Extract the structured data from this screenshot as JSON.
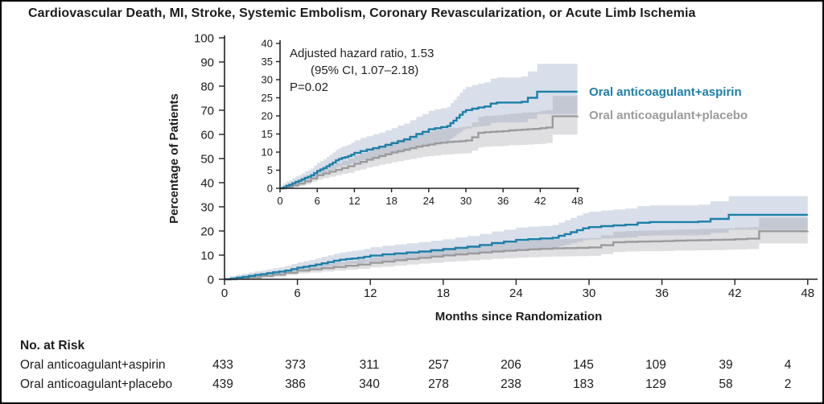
{
  "title": "Cardiovascular Death, MI, Stroke, Systemic Embolism, Coronary Revascularization, or Acute Limb Ischemia",
  "annotation": {
    "line1": "Adjusted hazard ratio, 1.53",
    "line2": "(95% CI, 1.07–2.18)",
    "line3": "P=0.02"
  },
  "legend": [
    {
      "label": "Oral anticoagulant+aspirin",
      "color": "#1d7fa7"
    },
    {
      "label": "Oral anticoagulant+placebo",
      "color": "#9b9b9d"
    }
  ],
  "axes": {
    "x_label": "Months since Randomization",
    "y_label": "Percentage of Patients"
  },
  "risk_table": {
    "heading": "No. at Risk",
    "rows": [
      {
        "label": "Oral anticoagulant+aspirin",
        "values": [
          "433",
          "373",
          "311",
          "257",
          "206",
          "145",
          "109",
          "39",
          "4"
        ]
      },
      {
        "label": "Oral anticoagulant+placebo",
        "values": [
          "439",
          "386",
          "340",
          "278",
          "238",
          "183",
          "129",
          "58",
          "2"
        ]
      }
    ]
  },
  "chart_data": {
    "type": "step",
    "title": "Cardiovascular Death, MI, Stroke, Systemic Embolism, Coronary Revascularization, or Acute Limb Ischemia",
    "xlabel": "Months since Randomization",
    "ylabel": "Percentage of Patients",
    "main_axes": {
      "xlim": [
        0,
        48
      ],
      "ylim": [
        0,
        100
      ],
      "xticks": [
        0,
        6,
        12,
        18,
        24,
        30,
        36,
        42,
        48
      ],
      "yticks": [
        0,
        10,
        20,
        30,
        40,
        50,
        60,
        70,
        80,
        90,
        100
      ]
    },
    "inset_axes": {
      "xlim": [
        0,
        48
      ],
      "ylim": [
        0,
        40
      ],
      "xticks": [
        0,
        6,
        12,
        18,
        24,
        30,
        36,
        42,
        48
      ],
      "yticks": [
        0,
        5,
        10,
        15,
        20,
        25,
        30,
        35,
        40
      ]
    },
    "series": [
      {
        "name": "Oral anticoagulant+aspirin",
        "color": "#1d7fa7",
        "band_color": "rgba(125,150,185,0.30)",
        "x": [
          0,
          0.5,
          1,
          1.5,
          2,
          2.5,
          3,
          3.5,
          4,
          4.5,
          5,
          5.5,
          6,
          6.5,
          7,
          7.5,
          8,
          8.5,
          9,
          9.5,
          10,
          10.5,
          11,
          11.5,
          12,
          13,
          14,
          15,
          16,
          17,
          18,
          19,
          20,
          21,
          22,
          23,
          24,
          25,
          26,
          27,
          27.5,
          28,
          28.5,
          29,
          29.5,
          30,
          31,
          32,
          33,
          34,
          35,
          39,
          40,
          41.5,
          48
        ],
        "y": [
          0,
          0.3,
          0.7,
          1,
          1.4,
          1.8,
          2.1,
          2.5,
          2.9,
          3.2,
          3.6,
          4.2,
          4.8,
          5.2,
          5.6,
          6.1,
          6.6,
          7.1,
          7.7,
          8.1,
          8.4,
          8.6,
          8.9,
          9.3,
          9.8,
          10.3,
          10.7,
          11.1,
          11.5,
          12,
          12.5,
          13,
          13.5,
          14.2,
          15,
          15.6,
          16.3,
          16.6,
          16.9,
          17.2,
          18,
          18.7,
          19.5,
          20.3,
          21.1,
          21.6,
          22,
          22.3,
          22.6,
          23.4,
          23.7,
          23.9,
          25,
          26.7,
          26.7
        ],
        "ci_upper": [
          0,
          1.4,
          1.9,
          2.3,
          2.8,
          3.3,
          3.6,
          4.1,
          4.6,
          5,
          5.5,
          6.3,
          7,
          7.5,
          8,
          8.6,
          9.3,
          9.9,
          10.6,
          11.1,
          11.5,
          11.8,
          12.1,
          12.6,
          13.3,
          13.9,
          14.4,
          14.9,
          15.4,
          16,
          16.6,
          17.3,
          17.9,
          18.8,
          19.8,
          20.5,
          21.4,
          21.8,
          22.1,
          22.5,
          23.5,
          24.4,
          25.4,
          26.4,
          27.4,
          28,
          28.5,
          28.9,
          29.3,
          30.3,
          30.6,
          30.9,
          32.3,
          34.4,
          34.4
        ],
        "ci_lower": [
          0,
          0,
          0.2,
          0.5,
          0.8,
          1.1,
          1.3,
          1.7,
          2,
          2.2,
          2.5,
          3,
          3.4,
          3.8,
          4.1,
          4.5,
          4.8,
          5.2,
          5.7,
          6,
          6.3,
          6.4,
          6.6,
          7,
          7.3,
          7.7,
          8,
          8.4,
          8.7,
          9.1,
          9.5,
          9.8,
          10.2,
          10.8,
          11.4,
          11.9,
          12.4,
          12.6,
          12.9,
          13.1,
          13.7,
          14.3,
          14.9,
          15.5,
          16.2,
          16.5,
          16.9,
          17.1,
          17.3,
          18,
          18.2,
          18.3,
          19.2,
          20.5,
          20.5
        ]
      },
      {
        "name": "Oral anticoagulant+placebo",
        "color": "#9b9b9d",
        "band_color": "rgba(150,150,155,0.30)",
        "x": [
          0,
          1,
          2,
          3,
          4,
          5,
          6,
          7,
          8,
          9,
          10,
          11,
          12,
          13,
          14,
          15,
          16,
          17,
          18,
          19,
          20,
          21,
          22,
          23,
          24,
          25,
          26,
          27,
          28,
          29,
          30,
          31,
          32,
          33,
          34,
          35,
          36,
          37,
          38,
          39,
          40,
          41,
          42,
          43,
          44,
          48
        ],
        "y": [
          0,
          0.3,
          0.8,
          1.3,
          1.9,
          2.7,
          3.6,
          4.1,
          4.6,
          5.1,
          5.6,
          6.1,
          6.8,
          7.3,
          7.9,
          8.4,
          8.9,
          9.4,
          9.9,
          10.3,
          10.7,
          11.1,
          11.5,
          11.8,
          12.1,
          12.4,
          12.6,
          12.8,
          12.9,
          13,
          13.2,
          14.1,
          15.3,
          15.5,
          15.6,
          15.7,
          15.8,
          16,
          16.1,
          16.2,
          16.3,
          16.4,
          16.6,
          16.8,
          19.9,
          20
        ],
        "ci_upper": [
          0,
          1,
          1.6,
          2.2,
          3,
          4,
          5.1,
          5.7,
          6.4,
          7,
          7.6,
          8.2,
          9.1,
          9.7,
          10.5,
          11.1,
          11.7,
          12.4,
          13,
          13.5,
          14,
          14.5,
          15,
          15.4,
          15.7,
          16.1,
          16.4,
          16.6,
          16.7,
          16.9,
          17.1,
          18.2,
          19.7,
          20,
          20.1,
          20.2,
          20.4,
          20.6,
          20.7,
          20.9,
          21,
          21.1,
          21.4,
          21.6,
          25.5,
          25.6
        ],
        "ci_lower": [
          0,
          0,
          0.3,
          0.7,
          1.1,
          1.8,
          2.4,
          2.8,
          3.2,
          3.6,
          4,
          4.3,
          4.9,
          5.2,
          5.7,
          6.1,
          6.5,
          6.8,
          7.2,
          7.5,
          7.8,
          8.1,
          8.4,
          8.7,
          8.9,
          9.1,
          9.3,
          9.4,
          9.5,
          9.6,
          9.7,
          10.4,
          11.3,
          11.5,
          11.6,
          11.6,
          11.7,
          11.9,
          11.9,
          12,
          12.1,
          12.2,
          12.3,
          12.5,
          14.8,
          14.9
        ]
      }
    ]
  }
}
